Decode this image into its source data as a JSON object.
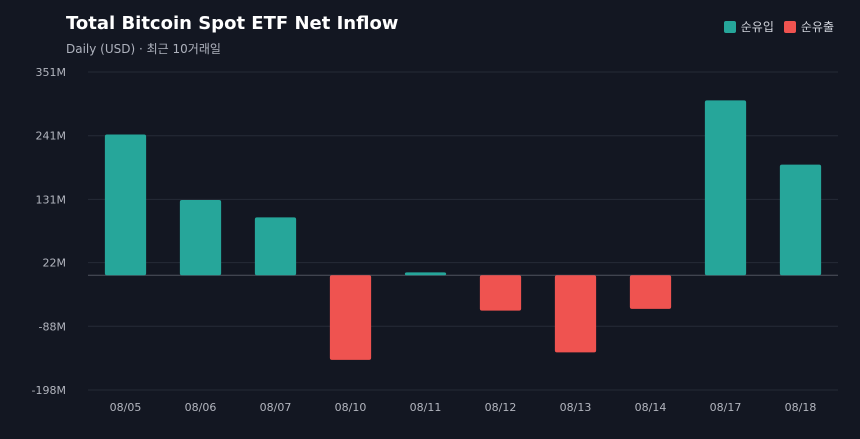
{
  "colors": {
    "inflow": "#26a69a",
    "outflow": "#ef5350"
  },
  "legend": {
    "inflow_label": "순유입",
    "outflow_label": "순유출"
  },
  "chart_data": {
    "type": "bar",
    "title": "Total Bitcoin Spot ETF Net Inflow",
    "subtitle": "Daily (USD) · 최근 10거래일",
    "categories": [
      "08/05",
      "08/06",
      "08/07",
      "08/10",
      "08/11",
      "08/12",
      "08/13",
      "08/14",
      "08/17",
      "08/18"
    ],
    "values": [
      243,
      130,
      100,
      -146,
      5,
      -61,
      -133,
      -58,
      302,
      191
    ],
    "yticks": [
      351,
      241,
      131,
      22,
      -88,
      -198
    ],
    "ytick_labels": [
      "351M",
      "241M",
      "131M",
      "22M",
      "-88M",
      "-198M"
    ],
    "ylim": [
      -198,
      351
    ],
    "grid": true,
    "legend_position": "top-right"
  }
}
